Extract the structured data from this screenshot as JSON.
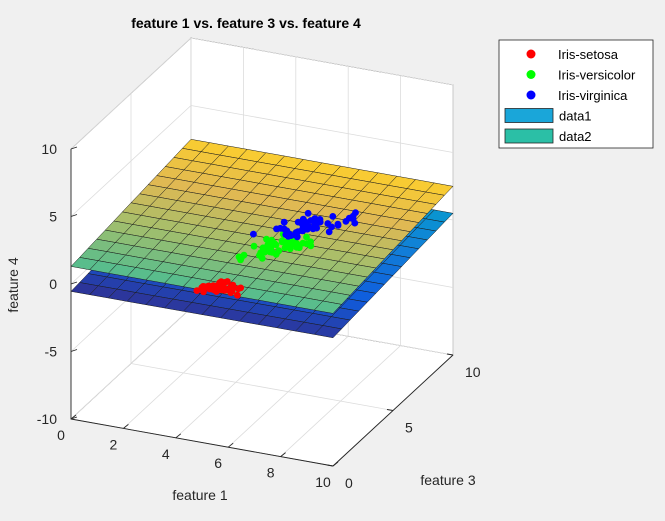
{
  "figure": {
    "background": "#f0f0f0",
    "axes_background": "#ffffff"
  },
  "chart_data": {
    "type": "scatter3d",
    "title": "feature 1 vs. feature 3 vs. feature 4",
    "xlabel": "feature 1",
    "ylabel": "feature 3",
    "zlabel": "feature 4",
    "xlim": [
      0,
      10
    ],
    "ylim": [
      0,
      10
    ],
    "zlim": [
      -10,
      10
    ],
    "xticks": [
      0,
      2,
      4,
      6,
      8,
      10
    ],
    "yticks": [
      0,
      5,
      10
    ],
    "zticks": [
      -10,
      -5,
      0,
      5,
      10
    ],
    "grid": true,
    "legend_position": "top-right",
    "colormap": "parula",
    "series": [
      {
        "name": "Iris-setosa",
        "kind": "scatter",
        "color": "#ff0000",
        "points": [
          [
            5.1,
            1.4,
            0.2
          ],
          [
            4.9,
            1.4,
            0.2
          ],
          [
            4.7,
            1.3,
            0.2
          ],
          [
            4.6,
            1.5,
            0.2
          ],
          [
            5.0,
            1.4,
            0.2
          ],
          [
            5.4,
            1.7,
            0.4
          ],
          [
            4.6,
            1.4,
            0.3
          ],
          [
            5.0,
            1.5,
            0.2
          ],
          [
            4.4,
            1.4,
            0.2
          ],
          [
            4.9,
            1.5,
            0.1
          ],
          [
            5.4,
            1.5,
            0.2
          ],
          [
            4.8,
            1.6,
            0.2
          ],
          [
            4.8,
            1.4,
            0.1
          ],
          [
            4.3,
            1.1,
            0.1
          ],
          [
            5.8,
            1.2,
            0.2
          ],
          [
            5.7,
            1.5,
            0.4
          ],
          [
            5.4,
            1.3,
            0.4
          ],
          [
            5.1,
            1.4,
            0.3
          ],
          [
            5.7,
            1.7,
            0.3
          ],
          [
            5.1,
            1.5,
            0.3
          ],
          [
            5.4,
            1.7,
            0.2
          ],
          [
            5.1,
            1.5,
            0.4
          ],
          [
            4.6,
            1.0,
            0.2
          ],
          [
            5.1,
            1.7,
            0.5
          ],
          [
            4.8,
            1.9,
            0.2
          ],
          [
            5.0,
            1.6,
            0.2
          ],
          [
            5.0,
            1.6,
            0.4
          ],
          [
            5.2,
            1.5,
            0.2
          ],
          [
            5.2,
            1.4,
            0.2
          ],
          [
            4.7,
            1.6,
            0.2
          ],
          [
            4.8,
            1.6,
            0.2
          ],
          [
            5.4,
            1.5,
            0.4
          ],
          [
            5.2,
            1.5,
            0.1
          ],
          [
            5.5,
            1.4,
            0.2
          ],
          [
            4.9,
            1.5,
            0.1
          ],
          [
            5.0,
            1.2,
            0.2
          ],
          [
            5.5,
            1.3,
            0.2
          ],
          [
            4.4,
            1.3,
            0.2
          ],
          [
            5.1,
            1.5,
            0.2
          ],
          [
            5.0,
            1.3,
            0.3
          ],
          [
            4.5,
            1.3,
            0.3
          ],
          [
            4.4,
            1.3,
            0.2
          ],
          [
            5.0,
            1.6,
            0.6
          ],
          [
            5.1,
            1.9,
            0.4
          ],
          [
            4.8,
            1.4,
            0.3
          ],
          [
            5.1,
            1.6,
            0.2
          ],
          [
            4.6,
            1.4,
            0.2
          ],
          [
            5.3,
            1.5,
            0.2
          ],
          [
            5.0,
            1.4,
            0.2
          ],
          [
            4.9,
            1.4,
            0.2
          ]
        ]
      },
      {
        "name": "Iris-versicolor",
        "kind": "scatter",
        "color": "#00ff00",
        "points": [
          [
            7.0,
            4.7,
            1.4
          ],
          [
            6.4,
            4.5,
            1.5
          ],
          [
            6.9,
            4.9,
            1.5
          ],
          [
            5.5,
            4.0,
            1.3
          ],
          [
            6.5,
            4.6,
            1.5
          ],
          [
            5.7,
            4.5,
            1.3
          ],
          [
            6.3,
            4.7,
            1.6
          ],
          [
            4.9,
            3.3,
            1.0
          ],
          [
            6.6,
            4.6,
            1.3
          ],
          [
            5.2,
            3.9,
            1.4
          ],
          [
            5.0,
            3.5,
            1.0
          ],
          [
            5.9,
            4.2,
            1.5
          ],
          [
            6.0,
            4.0,
            1.0
          ],
          [
            6.1,
            4.7,
            1.4
          ],
          [
            5.6,
            3.6,
            1.3
          ],
          [
            6.7,
            4.4,
            1.4
          ],
          [
            5.6,
            4.5,
            1.5
          ],
          [
            5.8,
            4.1,
            1.0
          ],
          [
            6.2,
            4.5,
            1.5
          ],
          [
            5.6,
            3.9,
            1.1
          ],
          [
            5.9,
            4.8,
            1.8
          ],
          [
            6.1,
            4.0,
            1.3
          ],
          [
            6.3,
            4.9,
            1.5
          ],
          [
            6.1,
            4.7,
            1.2
          ],
          [
            6.4,
            4.3,
            1.3
          ],
          [
            6.6,
            4.4,
            1.4
          ],
          [
            6.8,
            4.8,
            1.4
          ],
          [
            6.7,
            5.0,
            1.7
          ],
          [
            6.0,
            4.5,
            1.5
          ],
          [
            5.7,
            3.5,
            1.0
          ],
          [
            5.5,
            3.8,
            1.1
          ],
          [
            5.5,
            3.7,
            1.0
          ],
          [
            5.8,
            3.9,
            1.2
          ],
          [
            6.0,
            5.1,
            1.6
          ],
          [
            5.4,
            4.5,
            1.5
          ],
          [
            6.0,
            4.5,
            1.6
          ],
          [
            6.7,
            4.7,
            1.5
          ],
          [
            6.3,
            4.4,
            1.3
          ],
          [
            5.6,
            4.1,
            1.3
          ],
          [
            5.5,
            4.0,
            1.3
          ],
          [
            5.5,
            4.4,
            1.2
          ],
          [
            6.1,
            4.6,
            1.4
          ],
          [
            5.8,
            4.0,
            1.2
          ],
          [
            5.0,
            3.3,
            1.0
          ],
          [
            5.6,
            4.2,
            1.3
          ],
          [
            5.7,
            4.2,
            1.2
          ],
          [
            5.7,
            4.2,
            1.3
          ],
          [
            6.2,
            4.3,
            1.3
          ],
          [
            5.1,
            3.0,
            1.1
          ],
          [
            5.7,
            4.1,
            1.3
          ]
        ]
      },
      {
        "name": "Iris-virginica",
        "kind": "scatter",
        "color": "#0000ff",
        "points": [
          [
            6.3,
            6.0,
            2.5
          ],
          [
            5.8,
            5.1,
            1.9
          ],
          [
            7.1,
            5.9,
            2.1
          ],
          [
            6.3,
            5.6,
            1.8
          ],
          [
            6.5,
            5.8,
            2.2
          ],
          [
            7.6,
            6.6,
            2.1
          ],
          [
            4.9,
            4.5,
            1.7
          ],
          [
            7.3,
            6.3,
            1.8
          ],
          [
            6.7,
            5.8,
            1.8
          ],
          [
            7.2,
            6.1,
            2.5
          ],
          [
            6.5,
            5.1,
            2.0
          ],
          [
            6.4,
            5.3,
            1.9
          ],
          [
            6.8,
            5.5,
            2.1
          ],
          [
            5.7,
            5.0,
            2.0
          ],
          [
            5.8,
            5.1,
            2.4
          ],
          [
            6.4,
            5.3,
            2.3
          ],
          [
            6.5,
            5.5,
            1.8
          ],
          [
            7.7,
            6.7,
            2.2
          ],
          [
            7.7,
            6.9,
            2.3
          ],
          [
            6.0,
            5.0,
            1.5
          ],
          [
            6.9,
            5.7,
            2.3
          ],
          [
            5.6,
            4.9,
            2.0
          ],
          [
            7.7,
            6.7,
            2.0
          ],
          [
            6.3,
            4.9,
            1.8
          ],
          [
            6.7,
            5.7,
            2.1
          ],
          [
            7.2,
            6.0,
            1.8
          ],
          [
            6.2,
            4.8,
            1.8
          ],
          [
            6.1,
            4.9,
            1.8
          ],
          [
            6.4,
            5.6,
            2.1
          ],
          [
            7.2,
            5.8,
            1.6
          ],
          [
            7.4,
            6.1,
            1.9
          ],
          [
            7.9,
            6.4,
            2.0
          ],
          [
            6.4,
            5.6,
            2.2
          ],
          [
            6.3,
            5.1,
            1.5
          ],
          [
            6.1,
            5.6,
            1.4
          ],
          [
            7.7,
            6.1,
            2.3
          ],
          [
            6.3,
            5.6,
            2.4
          ],
          [
            6.4,
            5.5,
            1.8
          ],
          [
            6.0,
            4.8,
            1.8
          ],
          [
            6.9,
            5.4,
            2.1
          ],
          [
            6.7,
            5.6,
            2.4
          ],
          [
            6.9,
            5.1,
            2.3
          ],
          [
            5.8,
            5.1,
            1.9
          ],
          [
            6.8,
            5.9,
            2.3
          ],
          [
            6.7,
            5.7,
            2.5
          ],
          [
            6.7,
            5.2,
            2.3
          ],
          [
            6.3,
            5.0,
            1.9
          ],
          [
            6.5,
            5.2,
            2.0
          ],
          [
            6.2,
            5.4,
            2.3
          ],
          [
            5.9,
            5.1,
            1.8
          ]
        ]
      },
      {
        "name": "data1",
        "kind": "surface",
        "legend_color": "#1aa6d9",
        "plane": {
          "a": 0.005,
          "b": 0.1,
          "c": -0.55
        }
      },
      {
        "name": "data2",
        "kind": "surface",
        "legend_color": "#2bbfa6",
        "plane": {
          "a": 0.0,
          "b": 0.12,
          "c": 1.3
        }
      }
    ]
  }
}
